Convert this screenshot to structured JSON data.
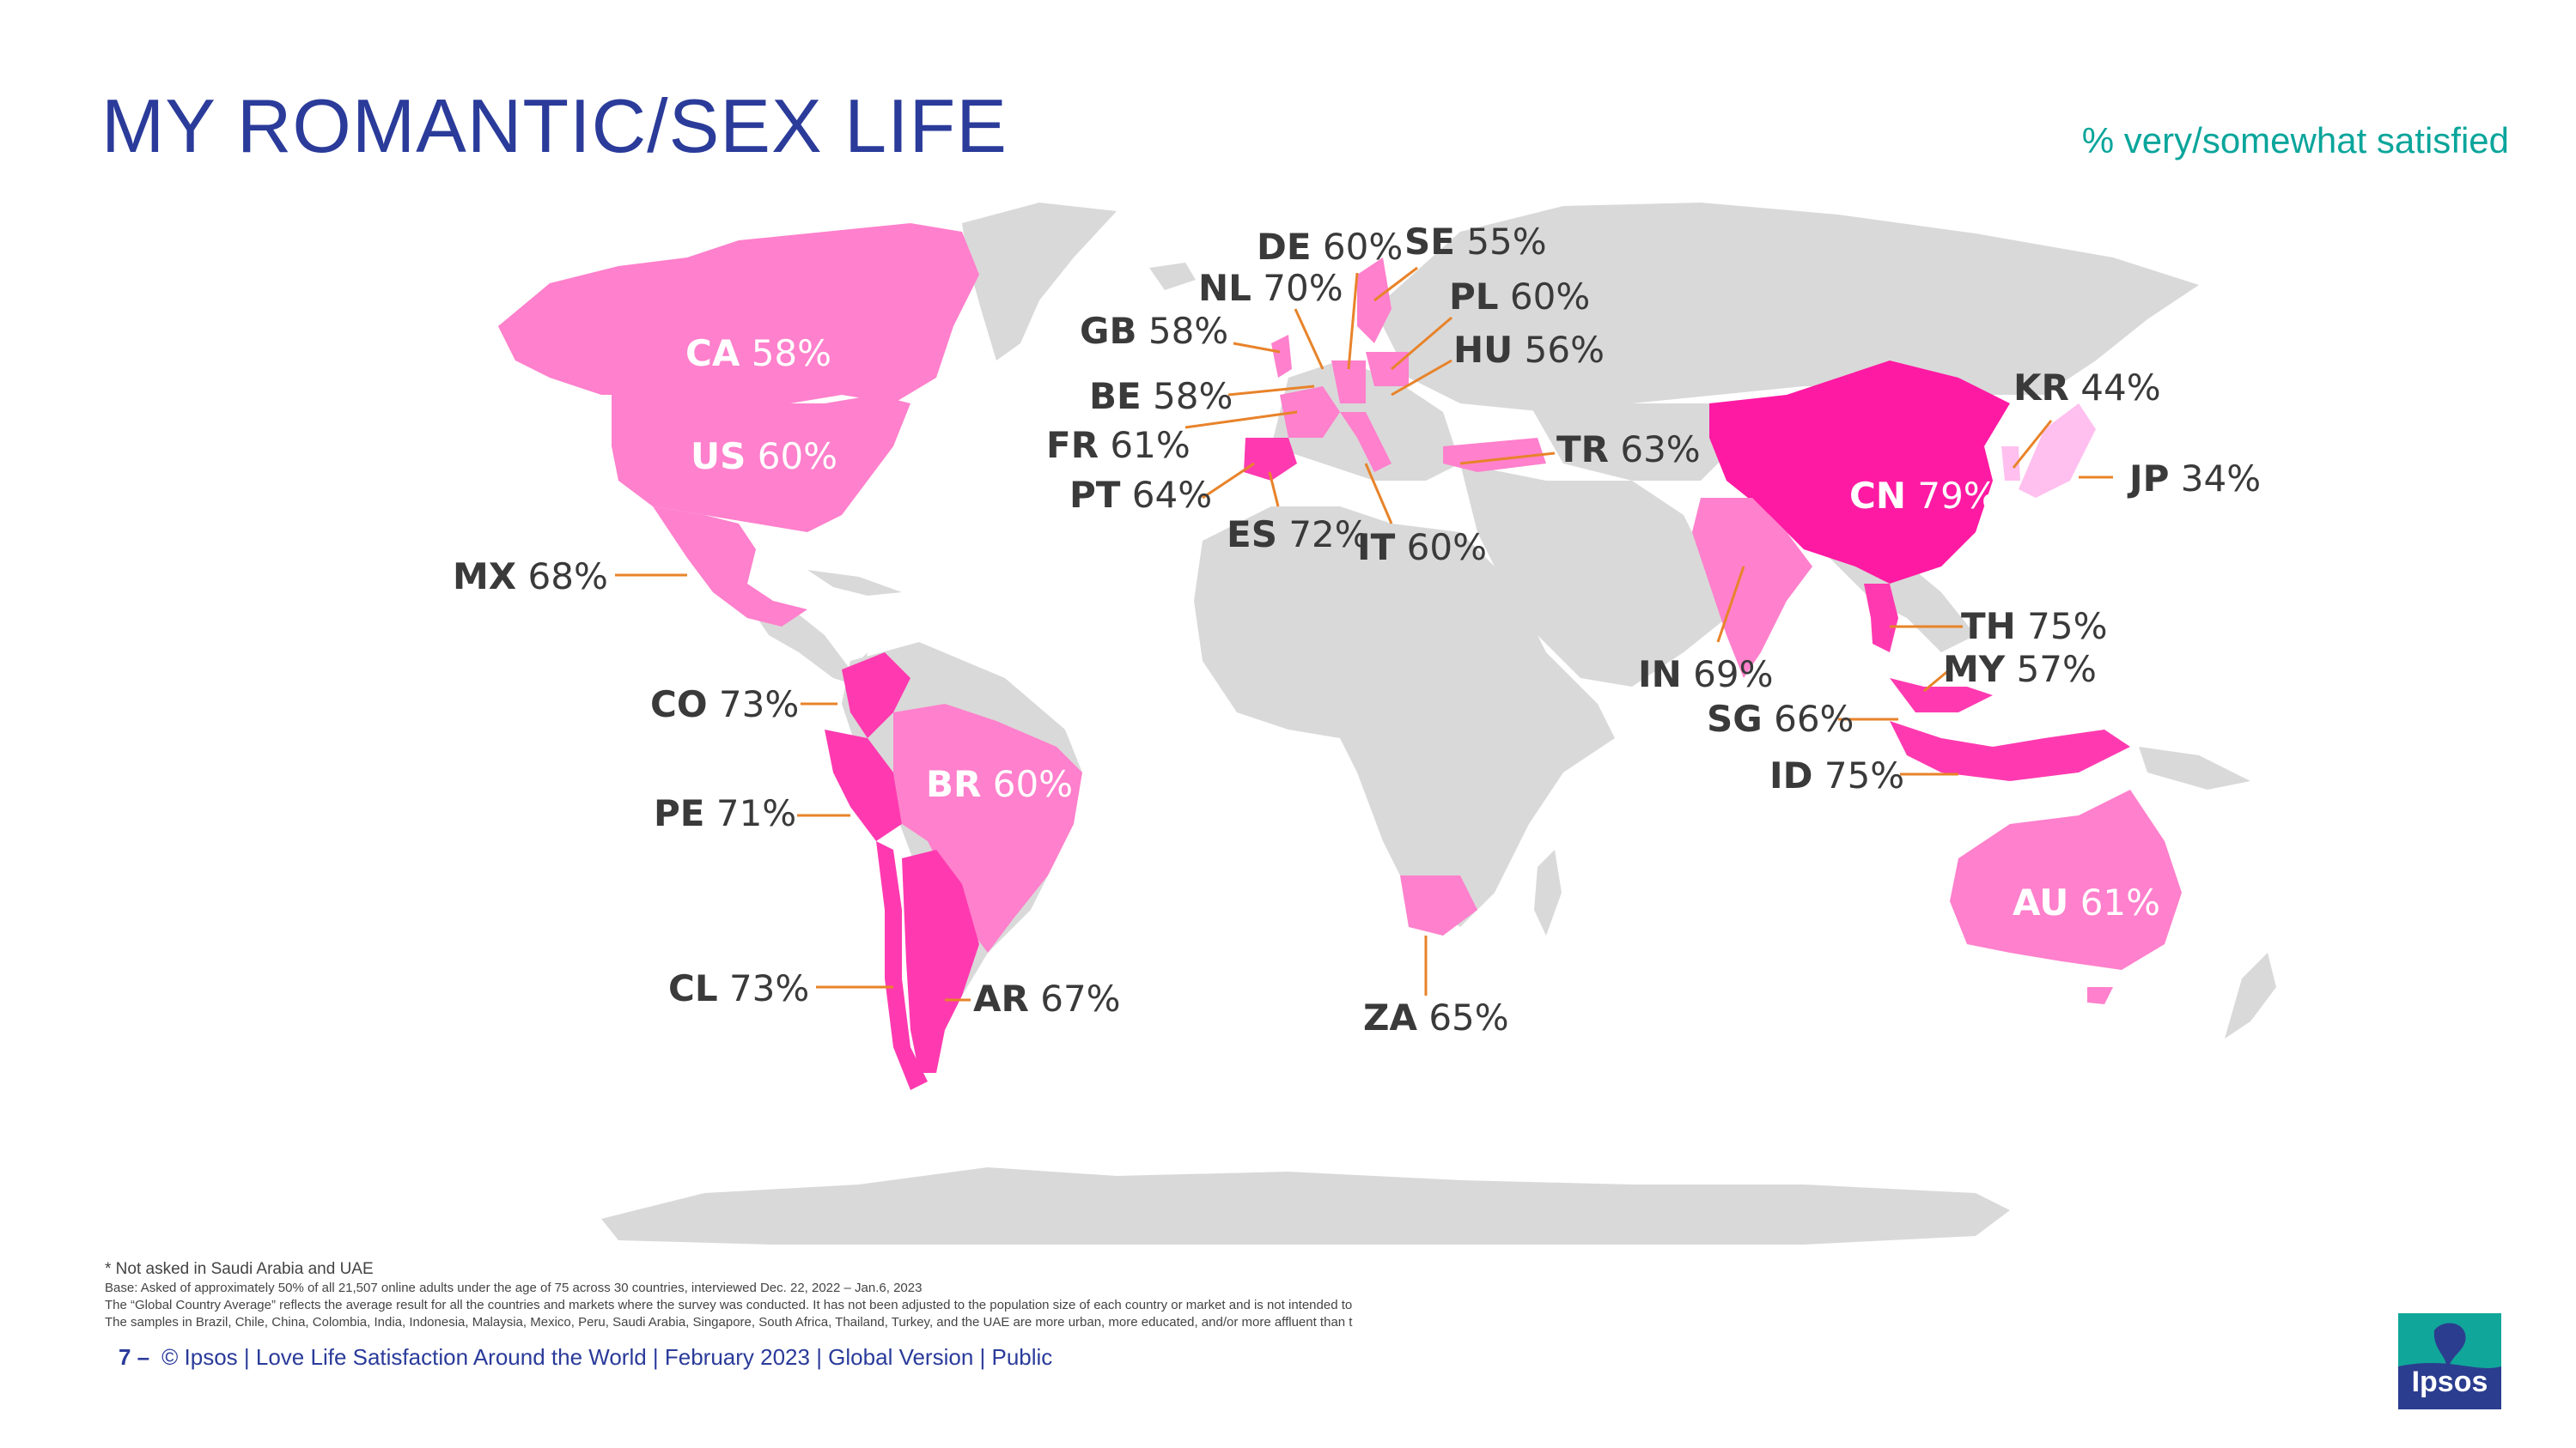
{
  "header": {
    "title": "MY ROMANTIC/SEX LIFE",
    "subtitle": "% very/somewhat satisfied"
  },
  "colors": {
    "title": "#2a3b9a",
    "subtitle": "#0aa59b",
    "land": "#d9d9d9",
    "leader": "#e8832a",
    "level_light": "#ffc0ef",
    "level_mid": "#ff80cc",
    "level_high": "#ff3ab0",
    "level_top": "#ff1aa3"
  },
  "countries": [
    {
      "code": "CA",
      "value": "58%"
    },
    {
      "code": "US",
      "value": "60%"
    },
    {
      "code": "MX",
      "value": "68%"
    },
    {
      "code": "CO",
      "value": "73%"
    },
    {
      "code": "PE",
      "value": "71%"
    },
    {
      "code": "BR",
      "value": "60%"
    },
    {
      "code": "CL",
      "value": "73%"
    },
    {
      "code": "AR",
      "value": "67%"
    },
    {
      "code": "GB",
      "value": "58%"
    },
    {
      "code": "NL",
      "value": "70%"
    },
    {
      "code": "DE",
      "value": "60%"
    },
    {
      "code": "SE",
      "value": "55%"
    },
    {
      "code": "PL",
      "value": "60%"
    },
    {
      "code": "HU",
      "value": "56%"
    },
    {
      "code": "BE",
      "value": "58%"
    },
    {
      "code": "FR",
      "value": "61%"
    },
    {
      "code": "PT",
      "value": "64%"
    },
    {
      "code": "ES",
      "value": "72%"
    },
    {
      "code": "IT",
      "value": "60%"
    },
    {
      "code": "TR",
      "value": "63%"
    },
    {
      "code": "ZA",
      "value": "65%"
    },
    {
      "code": "KR",
      "value": "44%"
    },
    {
      "code": "JP",
      "value": "34%"
    },
    {
      "code": "CN",
      "value": "79%"
    },
    {
      "code": "TH",
      "value": "75%"
    },
    {
      "code": "MY",
      "value": "57%"
    },
    {
      "code": "IN",
      "value": "69%"
    },
    {
      "code": "SG",
      "value": "66%"
    },
    {
      "code": "ID",
      "value": "75%"
    },
    {
      "code": "AU",
      "value": "61%"
    }
  ],
  "notes": {
    "not_asked": "* Not asked in Saudi Arabia and UAE",
    "base": "Base: Asked of approximately 50% of all 21,507 online adults under the age of 75 across 30 countries, interviewed Dec. 22, 2022 – Jan.6, 2023",
    "gca": "The “Global Country Average” reflects the average result for all the countries and markets where the survey was conducted. It has not been adjusted to the population size of each country or market and is not intended to",
    "samples": "The samples in Brazil, Chile, China, Colombia, India, Indonesia, Malaysia, Mexico, Peru, Saudi Arabia, Singapore, South Africa, Thailand, Turkey, and the UAE are more urban, more educated, and/or more affluent than t"
  },
  "footer": {
    "page": "7 –",
    "text": "© Ipsos | Love Life Satisfaction Around the World | February 2023 | Global Version | Public"
  },
  "logo": {
    "text": "Ipsos"
  }
}
